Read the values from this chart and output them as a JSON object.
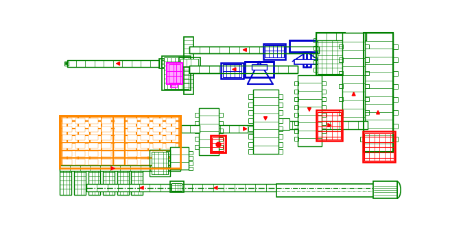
{
  "bg": "#ffffff",
  "G": "#008000",
  "R": "#ff0000",
  "O": "#ff8800",
  "B": "#0000cc",
  "M": "#ff00ff",
  "W": "#ffffff"
}
